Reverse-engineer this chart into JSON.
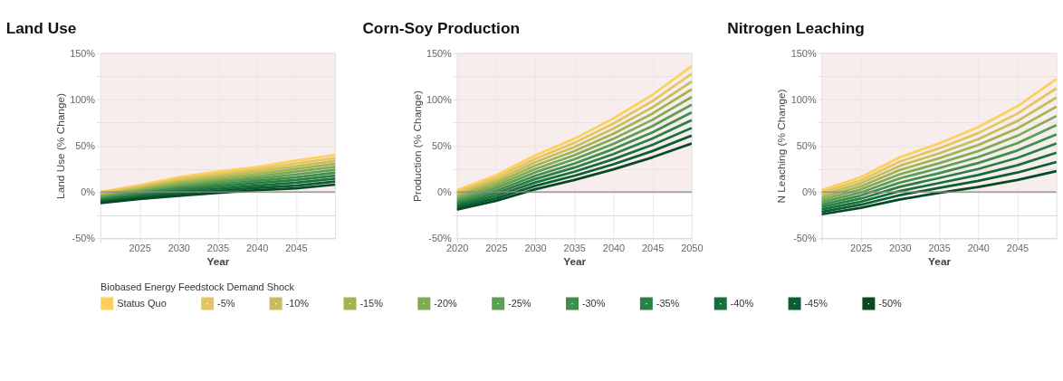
{
  "chart_data": [
    {
      "type": "line",
      "title": "Land Use",
      "xlabel": "Year",
      "ylabel": "Land Use (% Change)",
      "legend_title": "Biobased Energy Feedstock Demand Shock",
      "legend": "bottom",
      "grid": true,
      "marker": "none",
      "line_style": "solid",
      "x": [
        2020,
        2025,
        2030,
        2035,
        2040,
        2045,
        2050
      ],
      "xlim": [
        2020,
        2050
      ],
      "xticks": [
        {
          "value": 2020,
          "label": null
        },
        2025,
        2030,
        2035,
        2040,
        2045
      ],
      "ylim": [
        -50,
        150
      ],
      "yticks": [
        {
          "value": -50,
          "label": "-50%"
        },
        {
          "value": -25,
          "label": null
        },
        {
          "value": 0,
          "label": "0%"
        },
        {
          "value": 25,
          "label": null
        },
        {
          "value": 50,
          "label": "50%"
        },
        {
          "value": 75,
          "label": null
        },
        {
          "value": 100,
          "label": "100%"
        },
        {
          "value": 125,
          "label": null
        },
        {
          "value": 150,
          "label": "150%"
        }
      ],
      "bands": [
        {
          "axis": "y",
          "from": 0,
          "to": 150,
          "color": "#f3e6e4"
        }
      ],
      "ref_lines": [
        {
          "axis": "y",
          "value": 0,
          "color": "#8a8a8a",
          "line_style": "solid"
        }
      ],
      "series": [
        {
          "name": "Status Quo",
          "color": "#fdd05a",
          "values": [
            0,
            7.5,
            16,
            22,
            27,
            34,
            40
          ]
        },
        {
          "name": "-5%",
          "color": "#e3c562",
          "values": [
            -1.2,
            6,
            14,
            19.7,
            24.5,
            31,
            36.8
          ]
        },
        {
          "name": "-10%",
          "color": "#c4bf5c",
          "values": [
            -2.4,
            4.5,
            12,
            17.4,
            22,
            28,
            33.6
          ]
        },
        {
          "name": "-15%",
          "color": "#a0b450",
          "values": [
            -3.6,
            3,
            10,
            15.1,
            19.5,
            25,
            30.4
          ]
        },
        {
          "name": "-20%",
          "color": "#80aa55",
          "values": [
            -4.8,
            1.5,
            8,
            12.8,
            17,
            22,
            27.2
          ]
        },
        {
          "name": "-25%",
          "color": "#5d9e55",
          "values": [
            -6,
            0,
            6,
            10.5,
            14.5,
            19,
            24
          ]
        },
        {
          "name": "-30%",
          "color": "#3f8e4b",
          "values": [
            -7.2,
            -1.5,
            4,
            8.2,
            12,
            16,
            20.8
          ]
        },
        {
          "name": "-35%",
          "color": "#2a7f45",
          "values": [
            -8.4,
            -3,
            2,
            5.9,
            9.5,
            13,
            17.6
          ]
        },
        {
          "name": "-40%",
          "color": "#17703c",
          "values": [
            -9.6,
            -4.5,
            0,
            3.6,
            7,
            10,
            14.4
          ]
        },
        {
          "name": "-45%",
          "color": "#0b5e31",
          "values": [
            -10.8,
            -6,
            -2,
            1.3,
            4.5,
            7,
            11.2
          ]
        },
        {
          "name": "-50%",
          "color": "#064a25",
          "values": [
            -12,
            -7.5,
            -4,
            -1,
            2,
            4,
            8
          ]
        }
      ]
    },
    {
      "type": "line",
      "title": "Corn-Soy Production",
      "xlabel": "Year",
      "ylabel": "Production (% Change)",
      "grid": true,
      "marker": "none",
      "line_style": "solid",
      "x": [
        2020,
        2025,
        2030,
        2035,
        2040,
        2045,
        2050
      ],
      "xlim": [
        2020,
        2050
      ],
      "xticks": [
        2020,
        2025,
        2030,
        2035,
        2040,
        2045,
        2050
      ],
      "ylim": [
        -50,
        150
      ],
      "yticks": [
        {
          "value": -50,
          "label": "-50%"
        },
        {
          "value": -25,
          "label": null
        },
        {
          "value": 0,
          "label": "0%"
        },
        {
          "value": 25,
          "label": null
        },
        {
          "value": 50,
          "label": "50%"
        },
        {
          "value": 75,
          "label": null
        },
        {
          "value": 100,
          "label": "100%"
        },
        {
          "value": 125,
          "label": null
        },
        {
          "value": 150,
          "label": "150%"
        }
      ],
      "bands": [
        {
          "axis": "y",
          "from": 0,
          "to": 150,
          "color": "#f3e6e4"
        }
      ],
      "ref_lines": [
        {
          "axis": "y",
          "value": 0,
          "color": "#8a8a8a",
          "line_style": "solid"
        }
      ],
      "series": [
        {
          "color": "#fdd05a",
          "values": [
            2,
            18,
            39.5,
            57.5,
            79.5,
            105,
            136
          ]
        },
        {
          "color": "#e3c562",
          "values": [
            -0.1,
            15.3,
            35.9,
            53.1,
            74,
            98.3,
            127.7
          ]
        },
        {
          "color": "#c4bf5c",
          "values": [
            -2.2,
            12.5,
            32.2,
            48.6,
            68.5,
            91.5,
            119.3
          ]
        },
        {
          "color": "#a0b450",
          "values": [
            -4.3,
            9.8,
            28.6,
            44.2,
            63,
            84.8,
            111
          ]
        },
        {
          "color": "#80aa55",
          "values": [
            -6.4,
            7,
            24.9,
            39.7,
            57.5,
            78,
            102.6
          ]
        },
        {
          "color": "#5d9e55",
          "values": [
            -8.5,
            4.3,
            21.3,
            35.3,
            52,
            71.3,
            94.3
          ]
        },
        {
          "color": "#3f8e4b",
          "values": [
            -10.6,
            1.5,
            17.6,
            30.8,
            46.5,
            64.5,
            85.9
          ]
        },
        {
          "color": "#2a7f45",
          "values": [
            -12.7,
            -1.3,
            14,
            26.4,
            41,
            57.8,
            77.6
          ]
        },
        {
          "color": "#17703c",
          "values": [
            -14.8,
            -4,
            10.3,
            21.9,
            35.5,
            51,
            69.2
          ]
        },
        {
          "color": "#0b5e31",
          "values": [
            -16.9,
            -6.8,
            6.7,
            17.5,
            30,
            44.3,
            60.9
          ]
        },
        {
          "color": "#064a25",
          "values": [
            -19,
            -9.5,
            3,
            13,
            24.5,
            37.5,
            52.5
          ]
        }
      ]
    },
    {
      "type": "line",
      "title": "Nitrogen Leaching",
      "xlabel": "Year",
      "ylabel": "N Leaching (% Change)",
      "grid": true,
      "marker": "none",
      "line_style": "solid",
      "x": [
        2020,
        2025,
        2030,
        2035,
        2040,
        2045,
        2050
      ],
      "xlim": [
        2020,
        2050
      ],
      "xticks": [
        {
          "value": 2020,
          "label": null
        },
        2025,
        2030,
        2035,
        2040,
        2045
      ],
      "ylim": [
        -50,
        150
      ],
      "yticks": [
        {
          "value": -50,
          "label": "-50%"
        },
        {
          "value": -25,
          "label": null
        },
        {
          "value": 0,
          "label": "0%"
        },
        {
          "value": 25,
          "label": null
        },
        {
          "value": 50,
          "label": "50%"
        },
        {
          "value": 75,
          "label": null
        },
        {
          "value": 100,
          "label": "100%"
        },
        {
          "value": 125,
          "label": null
        },
        {
          "value": 150,
          "label": "150%"
        }
      ],
      "bands": [
        {
          "axis": "y",
          "from": 0,
          "to": 150,
          "color": "#f3e6e4"
        }
      ],
      "ref_lines": [
        {
          "axis": "y",
          "value": 0,
          "color": "#8a8a8a",
          "line_style": "solid"
        }
      ],
      "series": [
        {
          "color": "#fdd05a",
          "values": [
            2,
            16,
            37.5,
            52.5,
            70,
            92.5,
            122
          ]
        },
        {
          "color": "#e3c562",
          "values": [
            -0.6,
            12.7,
            33,
            47.2,
            63.6,
            84.6,
            112.1
          ]
        },
        {
          "color": "#c4bf5c",
          "values": [
            -3.2,
            9.4,
            28.4,
            41.8,
            57.1,
            76.6,
            102.1
          ]
        },
        {
          "color": "#a0b450",
          "values": [
            -5.8,
            6.1,
            23.9,
            36.5,
            50.7,
            68.7,
            92.2
          ]
        },
        {
          "color": "#80aa55",
          "values": [
            -8.4,
            2.8,
            19.3,
            31.1,
            44.2,
            60.7,
            82.2
          ]
        },
        {
          "color": "#5d9e55",
          "values": [
            -11,
            -0.5,
            14.8,
            25.8,
            37.8,
            52.8,
            72.3
          ]
        },
        {
          "color": "#3f8e4b",
          "values": [
            -13.6,
            -3.8,
            10.2,
            20.4,
            31.3,
            44.8,
            62.3
          ]
        },
        {
          "color": "#2a7f45",
          "values": [
            -16.2,
            -7.1,
            5.7,
            15.1,
            24.9,
            36.9,
            52.4
          ]
        },
        {
          "color": "#17703c",
          "values": [
            -18.8,
            -10.4,
            1.1,
            9.7,
            18.4,
            28.9,
            42.4
          ]
        },
        {
          "color": "#0b5e31",
          "values": [
            -21.4,
            -13.7,
            -3.4,
            4.4,
            12,
            21,
            32.5
          ]
        },
        {
          "color": "#064a25",
          "values": [
            -24,
            -17,
            -8,
            -1,
            5.5,
            13,
            22.5
          ]
        }
      ]
    }
  ]
}
